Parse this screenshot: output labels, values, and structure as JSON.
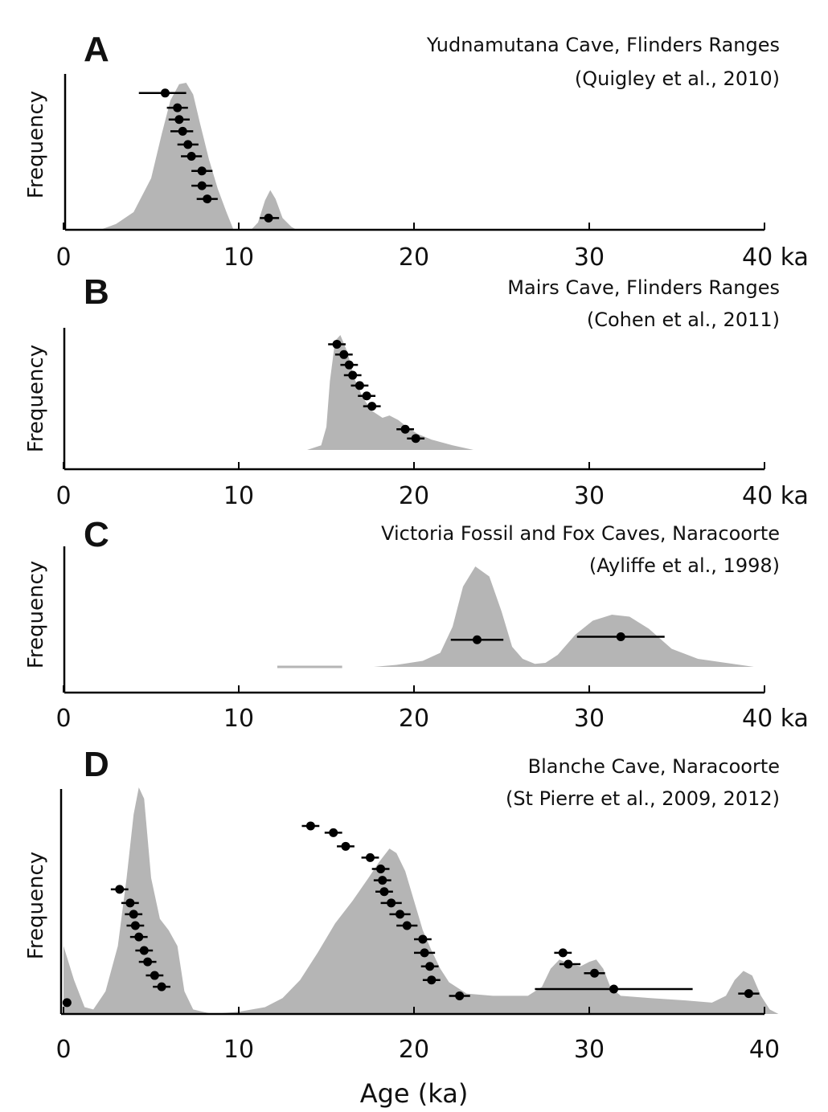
{
  "chart_data": [
    {
      "type": "area",
      "panel_label": "A",
      "title": "Yudnamutana Cave, Flinders Ranges",
      "subtitle": "(Quigley et al., 2010)",
      "ylabel": "Frequency",
      "xlabel": "",
      "xlim": [
        0,
        40
      ],
      "x_tick_values": [
        0,
        10,
        20,
        30,
        40
      ],
      "x_tick_labels": [
        "0",
        "10",
        "20",
        "30",
        "40 ka"
      ],
      "density": [
        {
          "x": 2.1,
          "y": 0.0
        },
        {
          "x": 3.0,
          "y": 0.04
        },
        {
          "x": 4.0,
          "y": 0.12
        },
        {
          "x": 5.0,
          "y": 0.35
        },
        {
          "x": 5.6,
          "y": 0.65
        },
        {
          "x": 6.1,
          "y": 0.88
        },
        {
          "x": 6.6,
          "y": 0.99
        },
        {
          "x": 7.0,
          "y": 1.0
        },
        {
          "x": 7.4,
          "y": 0.92
        },
        {
          "x": 7.8,
          "y": 0.72
        },
        {
          "x": 8.3,
          "y": 0.48
        },
        {
          "x": 8.8,
          "y": 0.28
        },
        {
          "x": 9.3,
          "y": 0.12
        },
        {
          "x": 9.7,
          "y": 0.0
        },
        {
          "x": 10.7,
          "y": 0.0
        },
        {
          "x": 11.1,
          "y": 0.05
        },
        {
          "x": 11.5,
          "y": 0.2
        },
        {
          "x": 11.8,
          "y": 0.27
        },
        {
          "x": 12.1,
          "y": 0.21
        },
        {
          "x": 12.5,
          "y": 0.08
        },
        {
          "x": 13.0,
          "y": 0.02
        },
        {
          "x": 13.3,
          "y": 0.0
        }
      ],
      "dates": [
        {
          "age": 5.8,
          "error_low": 4.3,
          "error_high": 7.0,
          "level": 0.93
        },
        {
          "age": 6.5,
          "error_low": 5.9,
          "error_high": 7.1,
          "level": 0.83
        },
        {
          "age": 6.6,
          "error_low": 6.0,
          "error_high": 7.2,
          "level": 0.75
        },
        {
          "age": 6.8,
          "error_low": 6.1,
          "error_high": 7.4,
          "level": 0.67
        },
        {
          "age": 7.1,
          "error_low": 6.5,
          "error_high": 7.7,
          "level": 0.58
        },
        {
          "age": 7.3,
          "error_low": 6.7,
          "error_high": 7.9,
          "level": 0.5
        },
        {
          "age": 7.9,
          "error_low": 7.3,
          "error_high": 8.5,
          "level": 0.4
        },
        {
          "age": 7.9,
          "error_low": 7.3,
          "error_high": 8.5,
          "level": 0.3
        },
        {
          "age": 8.2,
          "error_low": 7.6,
          "error_high": 8.8,
          "level": 0.21
        },
        {
          "age": 11.7,
          "error_low": 11.2,
          "error_high": 12.3,
          "level": 0.08
        }
      ],
      "grid": false
    },
    {
      "type": "area",
      "panel_label": "B",
      "title": "Mairs Cave, Flinders Ranges",
      "subtitle": "(Cohen et al., 2011)",
      "ylabel": "Frequency",
      "xlabel": "",
      "xlim": [
        0,
        40
      ],
      "x_tick_values": [
        0,
        10,
        20,
        30,
        40
      ],
      "x_tick_labels": [
        "0",
        "10",
        "20",
        "30",
        "40 ka"
      ],
      "density": [
        {
          "x": 13.9,
          "y": 0.0
        },
        {
          "x": 14.7,
          "y": 0.04
        },
        {
          "x": 15.0,
          "y": 0.2
        },
        {
          "x": 15.2,
          "y": 0.6
        },
        {
          "x": 15.5,
          "y": 0.95
        },
        {
          "x": 15.8,
          "y": 1.0
        },
        {
          "x": 16.2,
          "y": 0.85
        },
        {
          "x": 16.6,
          "y": 0.62
        },
        {
          "x": 17.1,
          "y": 0.45
        },
        {
          "x": 17.6,
          "y": 0.34
        },
        {
          "x": 18.2,
          "y": 0.28
        },
        {
          "x": 18.6,
          "y": 0.3
        },
        {
          "x": 19.1,
          "y": 0.26
        },
        {
          "x": 19.6,
          "y": 0.2
        },
        {
          "x": 20.2,
          "y": 0.14
        },
        {
          "x": 21.0,
          "y": 0.09
        },
        {
          "x": 22.2,
          "y": 0.04
        },
        {
          "x": 23.4,
          "y": 0.0
        }
      ],
      "dates": [
        {
          "age": 15.6,
          "error_low": 15.1,
          "error_high": 16.1,
          "level": 0.92
        },
        {
          "age": 16.0,
          "error_low": 15.5,
          "error_high": 16.5,
          "level": 0.83
        },
        {
          "age": 16.3,
          "error_low": 15.8,
          "error_high": 16.8,
          "level": 0.74
        },
        {
          "age": 16.5,
          "error_low": 16.0,
          "error_high": 17.0,
          "level": 0.65
        },
        {
          "age": 16.9,
          "error_low": 16.4,
          "error_high": 17.4,
          "level": 0.56
        },
        {
          "age": 17.3,
          "error_low": 16.8,
          "error_high": 17.8,
          "level": 0.47
        },
        {
          "age": 17.6,
          "error_low": 17.1,
          "error_high": 18.1,
          "level": 0.38
        },
        {
          "age": 19.5,
          "error_low": 19.0,
          "error_high": 20.0,
          "level": 0.18
        },
        {
          "age": 20.1,
          "error_low": 19.6,
          "error_high": 20.6,
          "level": 0.1
        }
      ],
      "grid": false
    },
    {
      "type": "area",
      "panel_label": "C",
      "title": "Victoria Fossil and Fox Caves, Naracoorte",
      "subtitle": "(Ayliffe et al., 1998)",
      "ylabel": "Frequency",
      "xlabel": "",
      "xlim": [
        0,
        40
      ],
      "x_tick_values": [
        0,
        10,
        20,
        30,
        40
      ],
      "x_tick_labels": [
        "0",
        "10",
        "20",
        "30",
        "40 ka"
      ],
      "baseline_segment": {
        "x_start": 12.2,
        "x_end": 15.9,
        "level": 0.0
      },
      "density": [
        {
          "x": 17.7,
          "y": 0.0
        },
        {
          "x": 19.0,
          "y": 0.02
        },
        {
          "x": 20.5,
          "y": 0.06
        },
        {
          "x": 21.5,
          "y": 0.14
        },
        {
          "x": 22.2,
          "y": 0.4
        },
        {
          "x": 22.8,
          "y": 0.8
        },
        {
          "x": 23.5,
          "y": 1.0
        },
        {
          "x": 24.3,
          "y": 0.9
        },
        {
          "x": 25.0,
          "y": 0.55
        },
        {
          "x": 25.6,
          "y": 0.2
        },
        {
          "x": 26.2,
          "y": 0.08
        },
        {
          "x": 26.9,
          "y": 0.03
        },
        {
          "x": 27.5,
          "y": 0.04
        },
        {
          "x": 28.2,
          "y": 0.12
        },
        {
          "x": 29.2,
          "y": 0.32
        },
        {
          "x": 30.2,
          "y": 0.46
        },
        {
          "x": 31.3,
          "y": 0.52
        },
        {
          "x": 32.3,
          "y": 0.5
        },
        {
          "x": 33.4,
          "y": 0.38
        },
        {
          "x": 34.7,
          "y": 0.18
        },
        {
          "x": 36.2,
          "y": 0.08
        },
        {
          "x": 37.8,
          "y": 0.04
        },
        {
          "x": 39.4,
          "y": 0.0
        }
      ],
      "dates": [
        {
          "age": 23.6,
          "error_low": 22.1,
          "error_high": 25.1,
          "level": 0.27
        },
        {
          "age": 31.8,
          "error_low": 29.3,
          "error_high": 34.3,
          "level": 0.3
        }
      ],
      "grid": false
    },
    {
      "type": "area",
      "panel_label": "D",
      "title": "Blanche Cave, Naracoorte",
      "subtitle": "(St Pierre et al., 2009, 2012)",
      "ylabel": "Frequency",
      "xlabel": "Age (ka)",
      "xlim": [
        0,
        40
      ],
      "x_tick_values": [
        0,
        10,
        20,
        30,
        40
      ],
      "x_tick_labels": [
        "0",
        "10",
        "20",
        "30",
        "40"
      ],
      "density": [
        {
          "x": 0.0,
          "y": 0.3
        },
        {
          "x": 0.6,
          "y": 0.15
        },
        {
          "x": 1.2,
          "y": 0.03
        },
        {
          "x": 1.7,
          "y": 0.02
        },
        {
          "x": 2.4,
          "y": 0.1
        },
        {
          "x": 3.1,
          "y": 0.3
        },
        {
          "x": 3.6,
          "y": 0.6
        },
        {
          "x": 4.0,
          "y": 0.88
        },
        {
          "x": 4.3,
          "y": 1.0
        },
        {
          "x": 4.6,
          "y": 0.95
        },
        {
          "x": 5.0,
          "y": 0.6
        },
        {
          "x": 5.5,
          "y": 0.42
        },
        {
          "x": 6.0,
          "y": 0.37
        },
        {
          "x": 6.5,
          "y": 0.3
        },
        {
          "x": 6.9,
          "y": 0.1
        },
        {
          "x": 7.4,
          "y": 0.02
        },
        {
          "x": 8.5,
          "y": 0.0
        },
        {
          "x": 10.0,
          "y": 0.01
        },
        {
          "x": 11.5,
          "y": 0.03
        },
        {
          "x": 12.5,
          "y": 0.07
        },
        {
          "x": 13.5,
          "y": 0.15
        },
        {
          "x": 14.5,
          "y": 0.27
        },
        {
          "x": 15.5,
          "y": 0.4
        },
        {
          "x": 16.5,
          "y": 0.5
        },
        {
          "x": 17.4,
          "y": 0.6
        },
        {
          "x": 18.0,
          "y": 0.67
        },
        {
          "x": 18.6,
          "y": 0.73
        },
        {
          "x": 19.0,
          "y": 0.71
        },
        {
          "x": 19.5,
          "y": 0.63
        },
        {
          "x": 20.0,
          "y": 0.5
        },
        {
          "x": 20.5,
          "y": 0.37
        },
        {
          "x": 21.0,
          "y": 0.28
        },
        {
          "x": 21.5,
          "y": 0.2
        },
        {
          "x": 22.0,
          "y": 0.14
        },
        {
          "x": 23.0,
          "y": 0.09
        },
        {
          "x": 24.5,
          "y": 0.08
        },
        {
          "x": 26.5,
          "y": 0.08
        },
        {
          "x": 27.3,
          "y": 0.12
        },
        {
          "x": 27.8,
          "y": 0.2
        },
        {
          "x": 28.3,
          "y": 0.24
        },
        {
          "x": 28.9,
          "y": 0.22
        },
        {
          "x": 29.5,
          "y": 0.21
        },
        {
          "x": 30.0,
          "y": 0.23
        },
        {
          "x": 30.4,
          "y": 0.24
        },
        {
          "x": 30.8,
          "y": 0.2
        },
        {
          "x": 31.2,
          "y": 0.12
        },
        {
          "x": 31.8,
          "y": 0.08
        },
        {
          "x": 33.5,
          "y": 0.07
        },
        {
          "x": 35.5,
          "y": 0.06
        },
        {
          "x": 37.0,
          "y": 0.05
        },
        {
          "x": 37.8,
          "y": 0.08
        },
        {
          "x": 38.3,
          "y": 0.15
        },
        {
          "x": 38.8,
          "y": 0.19
        },
        {
          "x": 39.3,
          "y": 0.17
        },
        {
          "x": 39.8,
          "y": 0.08
        },
        {
          "x": 40.3,
          "y": 0.02
        },
        {
          "x": 40.8,
          "y": 0.0
        }
      ],
      "dates": [
        {
          "age": 0.2,
          "error_low": 0.2,
          "error_high": 0.2,
          "level": 0.05
        },
        {
          "age": 3.2,
          "error_low": 2.7,
          "error_high": 3.7,
          "level": 0.55
        },
        {
          "age": 3.8,
          "error_low": 3.3,
          "error_high": 4.3,
          "level": 0.49
        },
        {
          "age": 4.0,
          "error_low": 3.5,
          "error_high": 4.5,
          "level": 0.44
        },
        {
          "age": 4.1,
          "error_low": 3.6,
          "error_high": 4.6,
          "level": 0.39
        },
        {
          "age": 4.3,
          "error_low": 3.8,
          "error_high": 4.8,
          "level": 0.34
        },
        {
          "age": 4.6,
          "error_low": 4.1,
          "error_high": 5.1,
          "level": 0.28
        },
        {
          "age": 4.8,
          "error_low": 4.3,
          "error_high": 5.3,
          "level": 0.23
        },
        {
          "age": 5.2,
          "error_low": 4.7,
          "error_high": 5.7,
          "level": 0.17
        },
        {
          "age": 5.6,
          "error_low": 5.1,
          "error_high": 6.1,
          "level": 0.12
        },
        {
          "age": 14.1,
          "error_low": 13.6,
          "error_high": 14.6,
          "level": 0.83
        },
        {
          "age": 15.4,
          "error_low": 14.9,
          "error_high": 15.9,
          "level": 0.8
        },
        {
          "age": 16.1,
          "error_low": 15.6,
          "error_high": 16.6,
          "level": 0.74
        },
        {
          "age": 17.5,
          "error_low": 17.0,
          "error_high": 18.0,
          "level": 0.69
        },
        {
          "age": 18.1,
          "error_low": 17.6,
          "error_high": 18.6,
          "level": 0.64
        },
        {
          "age": 18.2,
          "error_low": 17.7,
          "error_high": 18.7,
          "level": 0.59
        },
        {
          "age": 18.3,
          "error_low": 17.8,
          "error_high": 18.8,
          "level": 0.54
        },
        {
          "age": 18.7,
          "error_low": 18.1,
          "error_high": 19.3,
          "level": 0.49
        },
        {
          "age": 19.2,
          "error_low": 18.6,
          "error_high": 19.8,
          "level": 0.44
        },
        {
          "age": 19.6,
          "error_low": 19.0,
          "error_high": 20.2,
          "level": 0.39
        },
        {
          "age": 20.5,
          "error_low": 20.0,
          "error_high": 21.0,
          "level": 0.33
        },
        {
          "age": 20.6,
          "error_low": 20.0,
          "error_high": 21.2,
          "level": 0.27
        },
        {
          "age": 20.9,
          "error_low": 20.4,
          "error_high": 21.4,
          "level": 0.21
        },
        {
          "age": 21.0,
          "error_low": 20.5,
          "error_high": 21.5,
          "level": 0.15
        },
        {
          "age": 22.6,
          "error_low": 22.0,
          "error_high": 23.2,
          "level": 0.08
        },
        {
          "age": 28.5,
          "error_low": 28.0,
          "error_high": 29.0,
          "level": 0.27
        },
        {
          "age": 28.8,
          "error_low": 28.3,
          "error_high": 29.5,
          "level": 0.22
        },
        {
          "age": 30.3,
          "error_low": 29.7,
          "error_high": 30.9,
          "level": 0.18
        },
        {
          "age": 31.4,
          "error_low": 26.9,
          "error_high": 35.9,
          "level": 0.11
        },
        {
          "age": 39.1,
          "error_low": 38.5,
          "error_high": 39.7,
          "level": 0.09
        }
      ],
      "grid": false
    }
  ]
}
